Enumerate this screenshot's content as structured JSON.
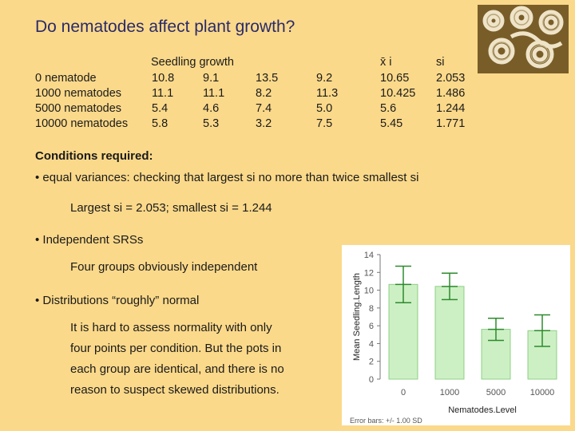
{
  "title": "Do nematodes affect plant growth?",
  "table": {
    "group_header": "Seedling growth",
    "xbar_header": "x̄ i",
    "s_header": "si",
    "rows": [
      {
        "label": "0 nematode",
        "v": [
          "10.8",
          "9.1",
          "13.5",
          "9.2"
        ],
        "mean": "10.65",
        "s": "2.053"
      },
      {
        "label": "1000 nematodes",
        "v": [
          "11.1",
          "11.1",
          "8.2",
          "11.3"
        ],
        "mean": "10.425",
        "s": "1.486"
      },
      {
        "label": "5000 nematodes",
        "v": [
          "5.4",
          "4.6",
          "7.4",
          "5.0"
        ],
        "mean": "5.6",
        "s": "1.244"
      },
      {
        "label": "10000 nematodes",
        "v": [
          "5.8",
          "5.3",
          "3.2",
          "7.5"
        ],
        "mean": "5.45",
        "s": "1.771"
      }
    ]
  },
  "conditions": {
    "heading": "Conditions required:",
    "bullet1": "• equal variances: checking that largest si no more than twice smallest si",
    "largest": "Largest si = 2.053;  smallest si = 1.244",
    "bullet2": "• Independent SRSs",
    "independent": "Four groups obviously independent",
    "bullet3": "• Distributions “roughly” normal",
    "normality_lines": [
      "It is hard to assess normality with only",
      "four points per condition. But the pots in",
      "each group are identical, and there is no",
      "reason to suspect skewed distributions."
    ]
  },
  "chart_data": {
    "type": "bar",
    "categories": [
      "0",
      "1000",
      "5000",
      "10000"
    ],
    "values": [
      10.65,
      10.425,
      5.6,
      5.45
    ],
    "errors": [
      2.053,
      1.486,
      1.244,
      1.771
    ],
    "xlabel": "Nematodes.Level",
    "ylabel": "Mean Seedling.Length",
    "ylim": [
      0,
      14
    ],
    "yticks": [
      "0",
      "2",
      "4",
      "6",
      "8",
      "10",
      "12",
      "14"
    ],
    "footnote": "Error bars: +/- 1.00 SD",
    "bar_color": "#ccf0c4",
    "bar_edge": "#8fcf86",
    "error_color": "#2d8a2d",
    "grid": false
  }
}
